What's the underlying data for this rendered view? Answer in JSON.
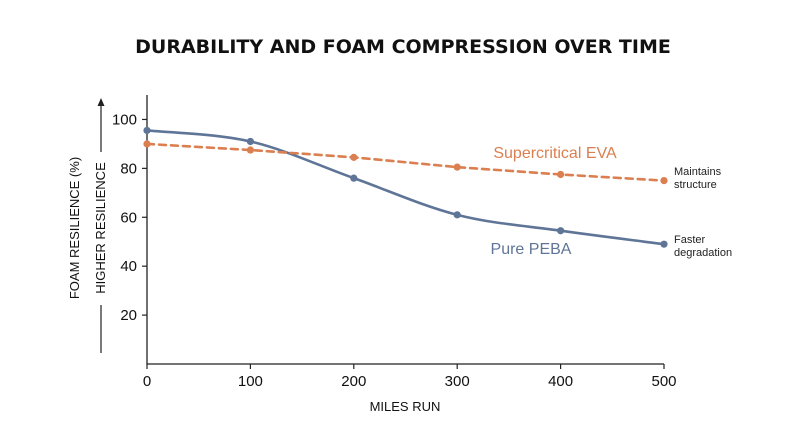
{
  "colors": {
    "peba": "#5F7597",
    "eva": "#DB7F50",
    "axis": "#222222",
    "text": "#111111"
  },
  "chart_data": {
    "type": "line",
    "title": "DURABILITY AND FOAM COMPRESSION OVER TIME",
    "xlabel": "MILES RUN",
    "ylabel": "FOAM RESILIENCE (%)",
    "ylabel_secondary": "HIGHER RESILIENCE",
    "x": [
      0,
      100,
      200,
      300,
      400,
      500
    ],
    "x_ticks": [
      "0",
      "100",
      "200",
      "300",
      "400",
      "500"
    ],
    "y_ticks": [
      "20",
      "40",
      "60",
      "80",
      "100"
    ],
    "xlim": [
      0,
      500
    ],
    "ylim": [
      0,
      110
    ],
    "grid": false,
    "series": [
      {
        "name": "Pure PEBA",
        "values": [
          95.5,
          91,
          76,
          61,
          54.5,
          49
        ],
        "style": "solid-smooth",
        "color": "#5F7597",
        "note": [
          "Faster",
          "degradation"
        ]
      },
      {
        "name": "Supercritical EVA",
        "values": [
          90,
          87.5,
          84.5,
          80.5,
          77.5,
          75
        ],
        "style": "dashed",
        "color": "#DB7F50",
        "note": [
          "Maintains",
          "structure"
        ]
      }
    ]
  }
}
